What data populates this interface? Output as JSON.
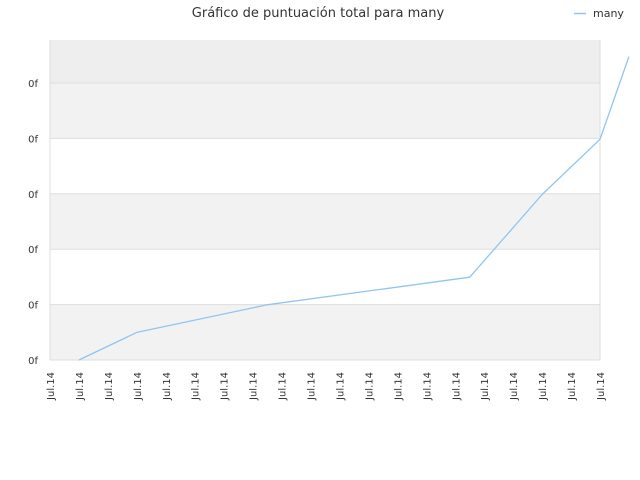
{
  "chart_data": {
    "type": "line",
    "title": "Gráfico de puntuación total para many",
    "xlabel": "",
    "ylabel": "",
    "x_tick_labels": [
      "Jul.14",
      "Jul.14",
      "Jul.14",
      "Jul.14",
      "Jul.14",
      "Jul.14",
      "Jul.14",
      "Jul.14",
      "Jul.14",
      "Jul.14",
      "Jul.14",
      "Jul.14",
      "Jul.14",
      "Jul.14",
      "Jul.14",
      "Jul.14",
      "Jul.14",
      "Jul.14",
      "Jul.14",
      "Jul.14"
    ],
    "y_tick_labels": [
      "0f",
      "0f",
      "0f",
      "0f",
      "0f",
      "0f"
    ],
    "ylim": [
      0,
      5.8
    ],
    "grid": true,
    "legend_position": "top-right",
    "series": [
      {
        "name": "many",
        "color": "#90c5f0",
        "x": [
          1,
          3,
          7.5,
          14.5,
          17,
          19,
          20
        ],
        "y": [
          0,
          0.5,
          1.0,
          1.5,
          3.0,
          4.0,
          5.5
        ]
      }
    ]
  }
}
